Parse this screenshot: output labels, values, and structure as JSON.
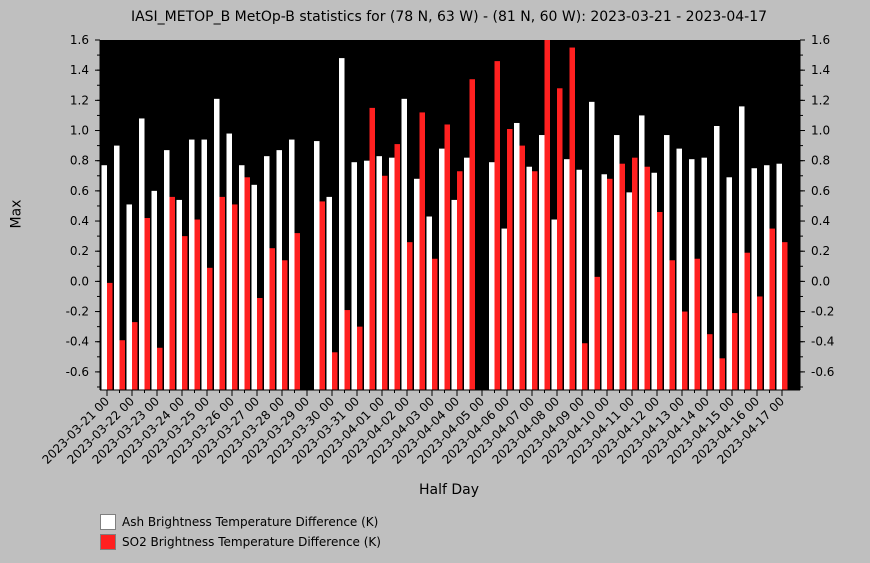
{
  "chart_data": {
    "type": "bar",
    "title": "IASI_METOP_B MetOp-B statistics for (78 N, 63 W) - (81 N, 60 W): 2023-03-21 - 2023-04-17",
    "xlabel": "Half Day",
    "ylabel": "Max",
    "ylim": [
      -0.72,
      1.6
    ],
    "yticks": [
      -0.6,
      -0.4,
      -0.2,
      0.0,
      0.2,
      0.4,
      0.6,
      0.8,
      1.0,
      1.2,
      1.4,
      1.6
    ],
    "ytick_labels": [
      "-0.6",
      "-0.4",
      "-0.2",
      "0.0",
      "0.2",
      "0.4",
      "0.6",
      "0.8",
      "1.0",
      "1.2",
      "1.4",
      "1.6"
    ],
    "xtick_labels": [
      "2023-03-21 00",
      "2023-03-22 00",
      "2023-03-23 00",
      "2023-03-24 00",
      "2023-03-25 00",
      "2023-03-26 00",
      "2023-03-27 00",
      "2023-03-28 00",
      "2023-03-29 00",
      "2023-03-30 00",
      "2023-03-31 00",
      "2023-04-01 00",
      "2023-04-02 00",
      "2023-04-03 00",
      "2023-04-04 00",
      "2023-04-05 00",
      "2023-04-06 00",
      "2023-04-07 00",
      "2023-04-08 00",
      "2023-04-09 00",
      "2023-04-10 00",
      "2023-04-11 00",
      "2023-04-12 00",
      "2023-04-13 00",
      "2023-04-14 00",
      "2023-04-15 00",
      "2023-04-16 00",
      "2023-04-17 00"
    ],
    "categories": [
      "2023-03-21 00",
      "2023-03-21 12",
      "2023-03-22 00",
      "2023-03-22 12",
      "2023-03-23 00",
      "2023-03-23 12",
      "2023-03-24 00",
      "2023-03-24 12",
      "2023-03-25 00",
      "2023-03-25 12",
      "2023-03-26 00",
      "2023-03-26 12",
      "2023-03-27 00",
      "2023-03-27 12",
      "2023-03-28 00",
      "2023-03-28 12",
      "2023-03-29 00",
      "2023-03-29 12",
      "2023-03-30 00",
      "2023-03-30 12",
      "2023-03-31 00",
      "2023-03-31 12",
      "2023-04-01 00",
      "2023-04-01 12",
      "2023-04-02 00",
      "2023-04-02 12",
      "2023-04-03 00",
      "2023-04-03 12",
      "2023-04-04 00",
      "2023-04-04 12",
      "2023-04-05 00",
      "2023-04-05 12",
      "2023-04-06 00",
      "2023-04-06 12",
      "2023-04-07 00",
      "2023-04-07 12",
      "2023-04-08 00",
      "2023-04-08 12",
      "2023-04-09 00",
      "2023-04-09 12",
      "2023-04-10 00",
      "2023-04-10 12",
      "2023-04-11 00",
      "2023-04-11 12",
      "2023-04-12 00",
      "2023-04-12 12",
      "2023-04-13 00",
      "2023-04-13 12",
      "2023-04-14 00",
      "2023-04-14 12",
      "2023-04-15 00",
      "2023-04-15 12",
      "2023-04-16 00",
      "2023-04-16 12",
      "2023-04-17 00"
    ],
    "series": [
      {
        "name": "Ash Brightness Temperature Difference (K)",
        "color": "#ffffff",
        "values": [
          0.77,
          0.9,
          0.51,
          1.08,
          0.6,
          0.87,
          0.54,
          0.94,
          0.94,
          1.21,
          0.98,
          0.77,
          0.64,
          0.83,
          0.87,
          0.94,
          null,
          0.93,
          0.56,
          1.48,
          0.79,
          0.8,
          0.83,
          0.82,
          1.21,
          0.68,
          0.43,
          0.88,
          0.54,
          0.82,
          null,
          0.79,
          0.35,
          1.05,
          0.76,
          0.97,
          0.41,
          0.81,
          0.74,
          1.19,
          0.71,
          0.97,
          0.59,
          1.1,
          0.72,
          0.97,
          0.88,
          0.81,
          0.82,
          1.03,
          0.69,
          1.16,
          0.75,
          0.77,
          0.78
        ]
      },
      {
        "name": "SO2 Brightness Temperature Difference (K)",
        "color": "#ff2020",
        "values": [
          -0.01,
          -0.39,
          -0.27,
          0.42,
          -0.44,
          0.56,
          0.3,
          0.41,
          0.09,
          0.56,
          0.51,
          0.69,
          -0.11,
          0.22,
          0.14,
          0.32,
          null,
          0.53,
          -0.47,
          -0.19,
          -0.3,
          1.15,
          0.7,
          0.91,
          0.26,
          1.12,
          0.15,
          1.04,
          0.73,
          1.34,
          null,
          1.46,
          1.01,
          0.9,
          0.73,
          1.6,
          1.28,
          1.55,
          -0.41,
          0.03,
          0.68,
          0.78,
          0.82,
          0.76,
          0.46,
          0.14,
          -0.2,
          0.15,
          -0.35,
          -0.51,
          -0.21,
          0.19,
          -0.1,
          0.35,
          0.26
        ]
      }
    ],
    "legend_position": "bottom-left",
    "grid": false
  }
}
